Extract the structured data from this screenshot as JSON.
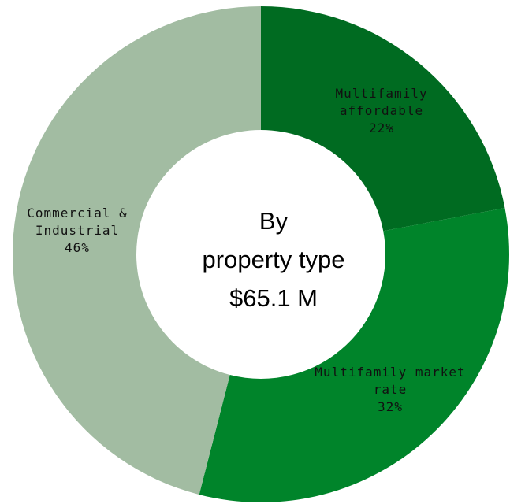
{
  "chart_data": {
    "type": "pie",
    "donut": true,
    "center_text": [
      "By",
      "property type",
      "$65.1 M"
    ],
    "slices": [
      {
        "label_lines": [
          "Multifamily",
          "affordable"
        ],
        "percent_text": "22%",
        "value": 22,
        "color": "#006B21"
      },
      {
        "label_lines": [
          "Multifamily market",
          "rate"
        ],
        "percent_text": "32%",
        "value": 32,
        "color": "#00842A"
      },
      {
        "label_lines": [
          "Commercial &",
          "Industrial"
        ],
        "percent_text": "46%",
        "value": 46,
        "color": "#A2BCA2"
      }
    ]
  }
}
